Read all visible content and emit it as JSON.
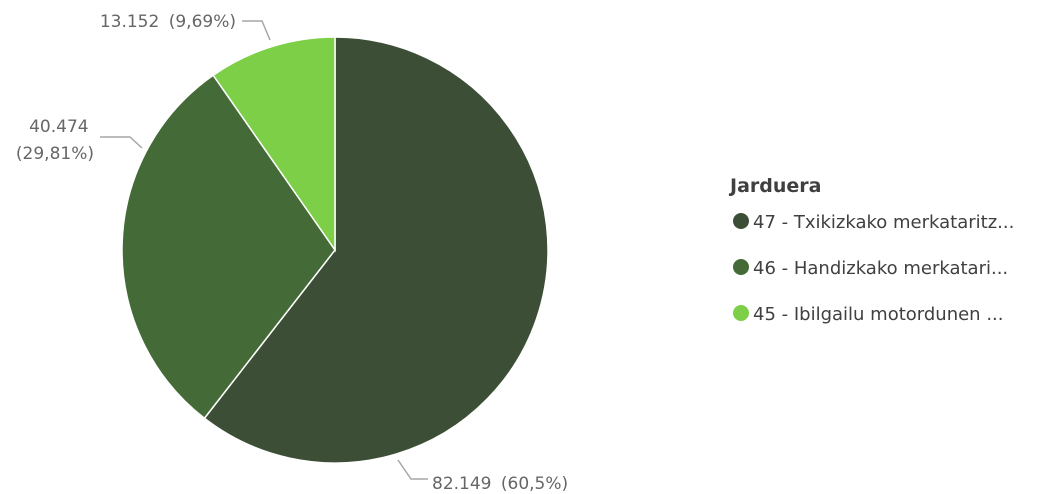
{
  "chart_data": {
    "type": "pie",
    "legend": {
      "title": "Jarduera",
      "placement": "right"
    },
    "slices": [
      {
        "name": "47 - Txikizkako merkataritz...",
        "value": 82149,
        "label_value": "82.149",
        "label_percent": "(60,5%)",
        "color": "#3d4e37"
      },
      {
        "name": "46 - Handizkako merkatari...",
        "value": 40474,
        "label_value": "40.474",
        "label_percent": "(29,81%)",
        "color": "#446b37"
      },
      {
        "name": "45 - Ibilgailu motordunen ...",
        "value": 13152,
        "label_value": "13.152",
        "label_percent": "(9,69%)",
        "color": "#7ecf48"
      }
    ]
  }
}
